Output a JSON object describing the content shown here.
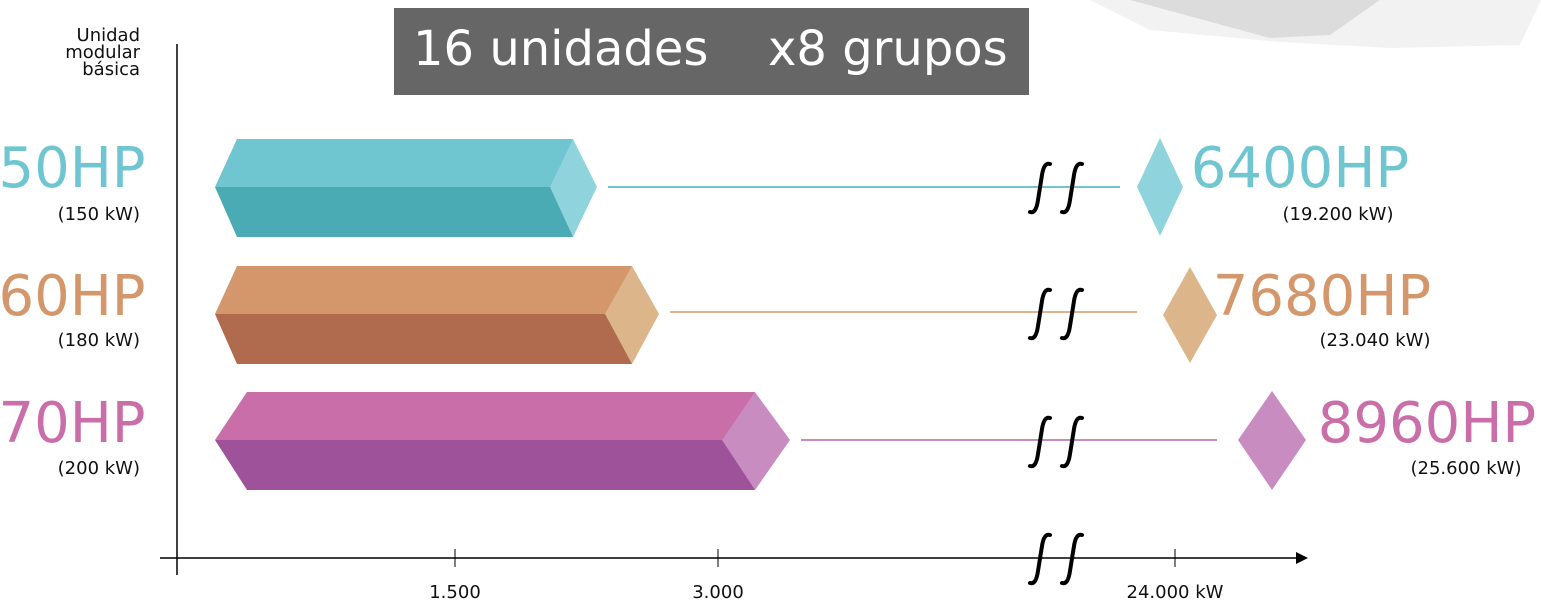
{
  "header": {
    "title_units": "16 unidades",
    "title_groups": "x8 grupos"
  },
  "axis": {
    "label": [
      "Unidad",
      "modular",
      "básica"
    ],
    "ticks": [
      "1.500",
      "3.000",
      "24.000 kW"
    ]
  },
  "rows": [
    {
      "label": "50HP",
      "kw": "(150 kW)",
      "total": "6400HP",
      "total_kw": "(19.200 kW)"
    },
    {
      "label": "60HP",
      "kw": "(180 kW)",
      "total": "7680HP",
      "total_kw": "(23.040 kW)"
    },
    {
      "label": "70HP",
      "kw": "(200 kW)",
      "total": "8960HP",
      "total_kw": "(25.600 kW)"
    }
  ]
}
